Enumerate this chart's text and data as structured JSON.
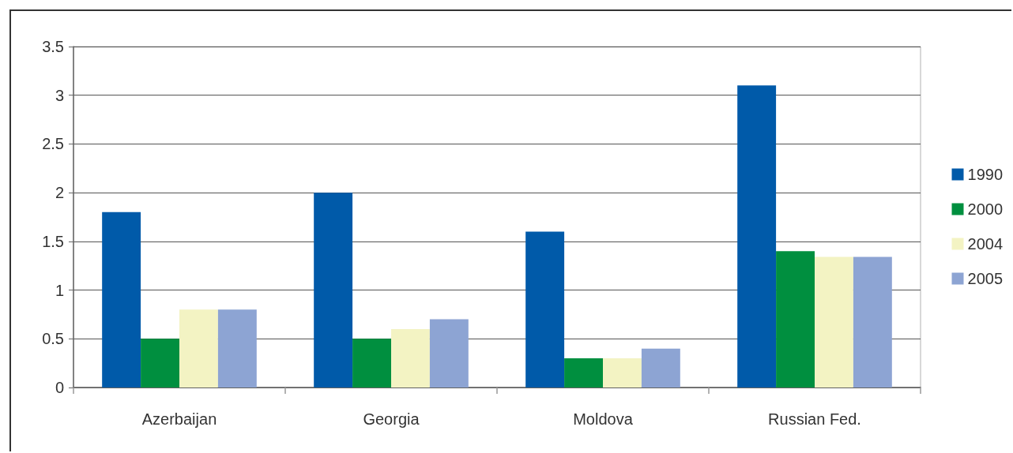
{
  "chart_data": {
    "type": "bar",
    "categories": [
      "Azerbaijan",
      "Georgia",
      "Moldova",
      "Russian Fed."
    ],
    "series": [
      {
        "name": "1990",
        "color": "#005aa9",
        "values": [
          1.8,
          2.0,
          1.6,
          3.1
        ]
      },
      {
        "name": "2000",
        "color": "#008f3f",
        "values": [
          0.5,
          0.5,
          0.3,
          1.4
        ]
      },
      {
        "name": "2004",
        "color": "#f3f3c3",
        "values": [
          0.8,
          0.6,
          0.3,
          1.34
        ]
      },
      {
        "name": "2005",
        "color": "#8da4d3",
        "values": [
          0.8,
          0.7,
          0.4,
          1.34
        ]
      }
    ],
    "ylim": [
      0,
      3.5
    ],
    "yticks": [
      0,
      0.5,
      1,
      1.5,
      2,
      2.5,
      3,
      3.5
    ],
    "grid": "y",
    "legend": "right"
  }
}
